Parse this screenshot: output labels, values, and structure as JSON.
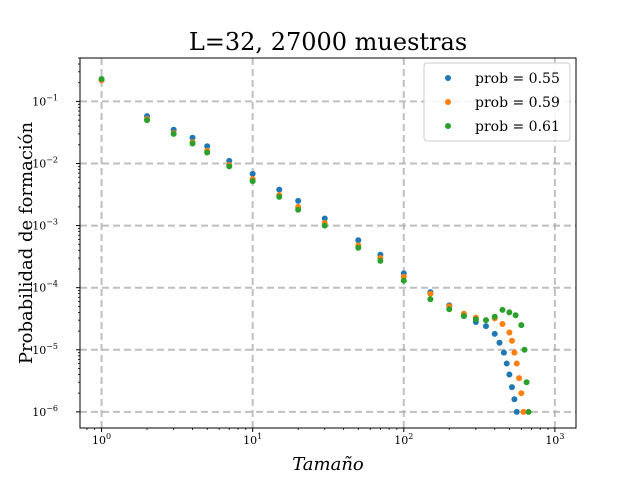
{
  "chart_data": {
    "type": "scatter",
    "title": "L=32, 27000 muestras",
    "xlabel": "Tamaño",
    "ylabel": "Probabilidad de formación",
    "xscale": "log",
    "yscale": "log",
    "xlim": [
      0.72,
      1380
    ],
    "ylim": [
      5.5e-07,
      0.5
    ],
    "grid": true,
    "legend_position": "top-right",
    "x_ticks": [
      {
        "value": 1,
        "base": "10",
        "exp": "0"
      },
      {
        "value": 10,
        "base": "10",
        "exp": "1"
      },
      {
        "value": 100,
        "base": "10",
        "exp": "2"
      },
      {
        "value": 1000,
        "base": "10",
        "exp": "3"
      }
    ],
    "y_ticks": [
      {
        "value": 1e-06,
        "base": "10",
        "exp": "−6"
      },
      {
        "value": 1e-05,
        "base": "10",
        "exp": "−5"
      },
      {
        "value": 0.0001,
        "base": "10",
        "exp": "−4"
      },
      {
        "value": 0.001,
        "base": "10",
        "exp": "−3"
      },
      {
        "value": 0.01,
        "base": "10",
        "exp": "−2"
      },
      {
        "value": 0.1,
        "base": "10",
        "exp": "−1"
      }
    ],
    "series": [
      {
        "name": "prob = 0.55",
        "color": "#1f77b4",
        "points": [
          [
            1,
            0.22
          ],
          [
            2,
            0.058
          ],
          [
            3,
            0.035
          ],
          [
            4,
            0.026
          ],
          [
            5,
            0.019
          ],
          [
            7,
            0.011
          ],
          [
            10,
            0.0068
          ],
          [
            15,
            0.0038
          ],
          [
            20,
            0.0025
          ],
          [
            30,
            0.0013
          ],
          [
            50,
            0.00058
          ],
          [
            70,
            0.00034
          ],
          [
            100,
            0.00017
          ],
          [
            150,
            8.5e-05
          ],
          [
            200,
            5.2e-05
          ],
          [
            250,
            3.5e-05
          ],
          [
            300,
            2.8e-05
          ],
          [
            350,
            2.4e-05
          ],
          [
            400,
            1.8e-05
          ],
          [
            430,
            1.3e-05
          ],
          [
            460,
            9e-06
          ],
          [
            480,
            6e-06
          ],
          [
            500,
            4e-06
          ],
          [
            520,
            2.5e-06
          ],
          [
            540,
            1.6e-06
          ],
          [
            560,
            1e-06
          ]
        ]
      },
      {
        "name": "prob = 0.59",
        "color": "#ff7f0e",
        "points": [
          [
            1,
            0.22
          ],
          [
            2,
            0.052
          ],
          [
            3,
            0.031
          ],
          [
            4,
            0.022
          ],
          [
            5,
            0.016
          ],
          [
            7,
            0.0095
          ],
          [
            10,
            0.0056
          ],
          [
            15,
            0.0031
          ],
          [
            20,
            0.002
          ],
          [
            30,
            0.0011
          ],
          [
            50,
            0.00048
          ],
          [
            70,
            0.0003
          ],
          [
            100,
            0.00015
          ],
          [
            150,
            8e-05
          ],
          [
            200,
            5e-05
          ],
          [
            250,
            3.8e-05
          ],
          [
            300,
            3.3e-05
          ],
          [
            400,
            3.2e-05
          ],
          [
            450,
            2.6e-05
          ],
          [
            500,
            1.9e-05
          ],
          [
            520,
            1.4e-05
          ],
          [
            540,
            9e-06
          ],
          [
            560,
            6e-06
          ],
          [
            580,
            3.5e-06
          ],
          [
            600,
            2e-06
          ],
          [
            620,
            1e-06
          ]
        ]
      },
      {
        "name": "prob = 0.61",
        "color": "#2ca02c",
        "points": [
          [
            1,
            0.23
          ],
          [
            2,
            0.05
          ],
          [
            3,
            0.03
          ],
          [
            4,
            0.021
          ],
          [
            5,
            0.015
          ],
          [
            7,
            0.009
          ],
          [
            10,
            0.0052
          ],
          [
            15,
            0.0029
          ],
          [
            20,
            0.0018
          ],
          [
            30,
            0.001
          ],
          [
            50,
            0.00044
          ],
          [
            70,
            0.00027
          ],
          [
            100,
            0.00013
          ],
          [
            150,
            6.5e-05
          ],
          [
            200,
            4.5e-05
          ],
          [
            250,
            3.5e-05
          ],
          [
            300,
            3.1e-05
          ],
          [
            350,
            3e-05
          ],
          [
            400,
            3.4e-05
          ],
          [
            450,
            4.4e-05
          ],
          [
            500,
            4e-05
          ],
          [
            550,
            3.6e-05
          ],
          [
            600,
            2.5e-05
          ],
          [
            630,
            1e-05
          ],
          [
            650,
            3e-06
          ],
          [
            670,
            1e-06
          ]
        ]
      }
    ]
  }
}
